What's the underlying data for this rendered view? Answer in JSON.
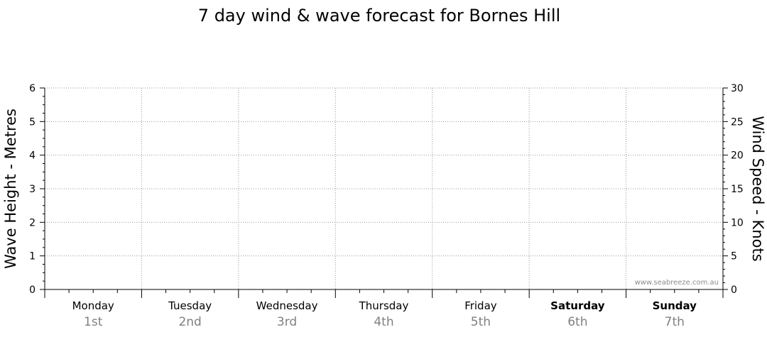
{
  "chart_data": {
    "type": "line",
    "title": "7 day wind & wave forecast for Bornes Hill",
    "ylabel_left": "Wave Height - Metres",
    "ylabel_right": "Wind Speed - Knots",
    "ylim_left": [
      0,
      6
    ],
    "ylim_right": [
      0,
      30
    ],
    "yticks_left": [
      "0",
      "1",
      "2",
      "3",
      "4",
      "5",
      "6"
    ],
    "yticks_right": [
      "0",
      "5",
      "10",
      "15",
      "20",
      "25",
      "30"
    ],
    "days": [
      {
        "name": "Monday",
        "date": "1st",
        "bold": false
      },
      {
        "name": "Tuesday",
        "date": "2nd",
        "bold": false
      },
      {
        "name": "Wednesday",
        "date": "3rd",
        "bold": false
      },
      {
        "name": "Thursday",
        "date": "4th",
        "bold": false
      },
      {
        "name": "Friday",
        "date": "5th",
        "bold": false
      },
      {
        "name": "Saturday",
        "date": "6th",
        "bold": true
      },
      {
        "name": "Sunday",
        "date": "7th",
        "bold": true
      }
    ],
    "series": [],
    "grid": true,
    "watermark": "www.seabreeze.com.au"
  }
}
